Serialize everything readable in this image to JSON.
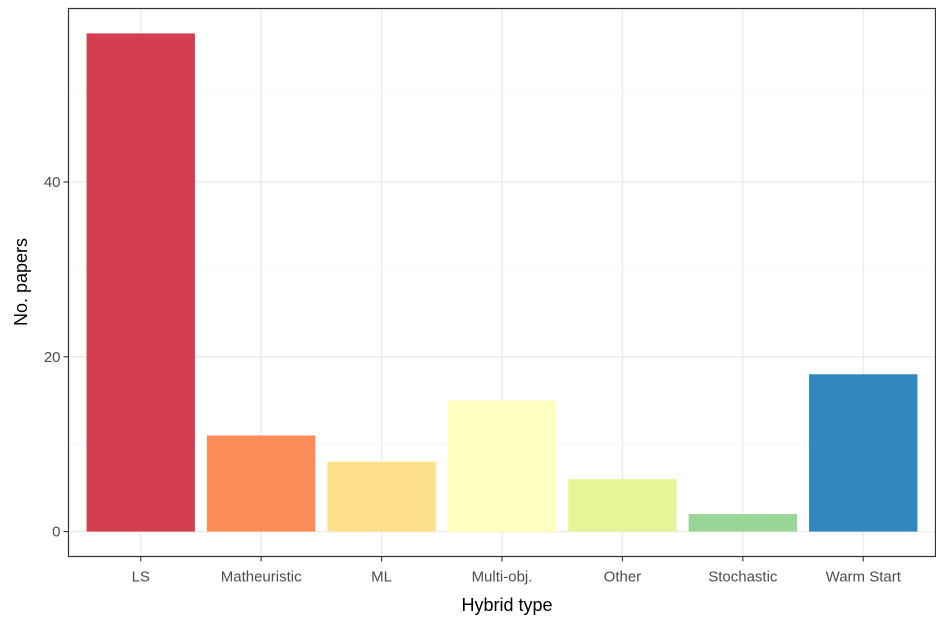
{
  "chart_data": {
    "type": "bar",
    "title": "",
    "xlabel": "Hybrid type",
    "ylabel": "No. papers",
    "categories": [
      "LS",
      "Matheuristic",
      "ML",
      "Multi-obj.",
      "Other",
      "Stochastic",
      "Warm Start"
    ],
    "values": [
      57,
      11,
      8,
      15,
      6,
      2,
      18
    ],
    "colors": [
      "#d53e4f",
      "#fc8d59",
      "#fee08b",
      "#ffffbf",
      "#e6f598",
      "#99d594",
      "#3288bd"
    ],
    "ylim": [
      -2.85,
      59.85
    ],
    "yticks": [
      0,
      20,
      40
    ],
    "grid": true,
    "legend": "none",
    "theme": {
      "panel_border": "#333333",
      "grid_major": "#ebebeb",
      "grid_minor": "#f5f5f5"
    }
  }
}
